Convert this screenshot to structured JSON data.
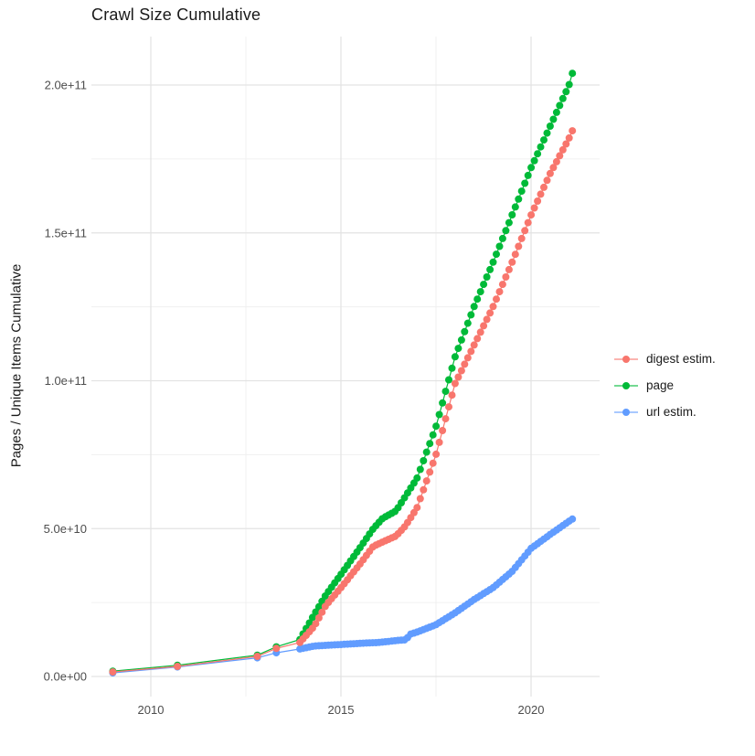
{
  "chart_data": {
    "type": "scatter",
    "title": "Crawl Size Cumulative",
    "xlabel": "",
    "ylabel": "Pages / Unique Items Cumulative",
    "grid": true,
    "legend_position": "right",
    "x_axis": {
      "range": [
        2008.4,
        2021.8
      ],
      "ticks": [
        {
          "value": 2010,
          "label": "2010"
        },
        {
          "value": 2015,
          "label": "2015"
        },
        {
          "value": 2020,
          "label": "2020"
        }
      ],
      "minor_ticks": [
        2012.5,
        2017.5
      ]
    },
    "y_axis": {
      "range": [
        -9000000000.0,
        216000000000.0
      ],
      "ticks": [
        {
          "value": 0,
          "label": "0.0e+00"
        },
        {
          "value": 50000000000.0,
          "label": "5.0e+10"
        },
        {
          "value": 100000000000.0,
          "label": "1.0e+11"
        },
        {
          "value": 150000000000.0,
          "label": "1.5e+11"
        },
        {
          "value": 200000000000.0,
          "label": "2.0e+11"
        }
      ],
      "minor_ticks": [
        25000000000.0,
        75000000000.0,
        125000000000.0,
        175000000000.0
      ]
    },
    "sampling": {
      "dense_from": 2013.92,
      "dense_to": 2021.12,
      "interval_years": 0.08333
    },
    "series": [
      {
        "name": "digest estim.",
        "color": "#F8766D",
        "points": [
          [
            2009.0,
            1500000000.0
          ],
          [
            2010.7,
            3400000000.0
          ],
          [
            2012.8,
            6800000000.0
          ],
          [
            2013.3,
            9500000000.0
          ],
          [
            2013.92,
            11500000000.0
          ],
          [
            2014.3,
            17000000000.0
          ],
          [
            2014.6,
            24000000000.0
          ],
          [
            2015.0,
            30000000000.0
          ],
          [
            2015.5,
            38000000000.0
          ],
          [
            2015.85,
            44000000000.0
          ],
          [
            2016.1,
            45500000000.0
          ],
          [
            2016.45,
            47500000000.0
          ],
          [
            2016.7,
            51000000000.0
          ],
          [
            2017.0,
            57000000000.0
          ],
          [
            2017.5,
            75000000000.0
          ],
          [
            2018.0,
            99000000000.0
          ],
          [
            2018.5,
            112000000000.0
          ],
          [
            2019.0,
            125000000000.0
          ],
          [
            2019.5,
            140000000000.0
          ],
          [
            2020.0,
            156000000000.0
          ],
          [
            2020.5,
            170000000000.0
          ],
          [
            2021.0,
            182000000000.0
          ],
          [
            2021.12,
            185500000000.0
          ]
        ]
      },
      {
        "name": "page",
        "color": "#00BA38",
        "points": [
          [
            2009.0,
            1800000000.0
          ],
          [
            2010.7,
            3800000000.0
          ],
          [
            2012.8,
            7200000000.0
          ],
          [
            2013.3,
            10000000000.0
          ],
          [
            2013.92,
            12500000000.0
          ],
          [
            2014.3,
            21000000000.0
          ],
          [
            2014.6,
            27500000000.0
          ],
          [
            2015.0,
            34500000000.0
          ],
          [
            2015.5,
            43500000000.0
          ],
          [
            2015.85,
            50000000000.0
          ],
          [
            2016.1,
            53500000000.0
          ],
          [
            2016.45,
            56000000000.0
          ],
          [
            2016.7,
            61000000000.0
          ],
          [
            2017.0,
            67000000000.0
          ],
          [
            2017.5,
            84500000000.0
          ],
          [
            2018.0,
            108000000000.0
          ],
          [
            2018.5,
            125000000000.0
          ],
          [
            2019.0,
            140000000000.0
          ],
          [
            2019.5,
            156000000000.0
          ],
          [
            2020.0,
            172000000000.0
          ],
          [
            2020.5,
            186000000000.0
          ],
          [
            2021.0,
            200000000000.0
          ],
          [
            2021.12,
            205500000000.0
          ]
        ]
      },
      {
        "name": "url estim.",
        "color": "#619CFF",
        "points": [
          [
            2009.0,
            1200000000.0
          ],
          [
            2010.7,
            3200000000.0
          ],
          [
            2012.8,
            6300000000.0
          ],
          [
            2013.3,
            8000000000.0
          ],
          [
            2013.92,
            9300000000.0
          ],
          [
            2014.3,
            10300000000.0
          ],
          [
            2015.0,
            10800000000.0
          ],
          [
            2015.5,
            11200000000.0
          ],
          [
            2016.0,
            11500000000.0
          ],
          [
            2016.5,
            12200000000.0
          ],
          [
            2016.72,
            12400000000.0
          ],
          [
            2016.8,
            14200000000.0
          ],
          [
            2017.0,
            15000000000.0
          ],
          [
            2017.5,
            17500000000.0
          ],
          [
            2018.0,
            21500000000.0
          ],
          [
            2018.5,
            26000000000.0
          ],
          [
            2019.0,
            30000000000.0
          ],
          [
            2019.5,
            35500000000.0
          ],
          [
            2020.0,
            43300000000.0
          ],
          [
            2020.5,
            48000000000.0
          ],
          [
            2021.0,
            52500000000.0
          ],
          [
            2021.12,
            53500000000.0
          ]
        ]
      }
    ]
  }
}
